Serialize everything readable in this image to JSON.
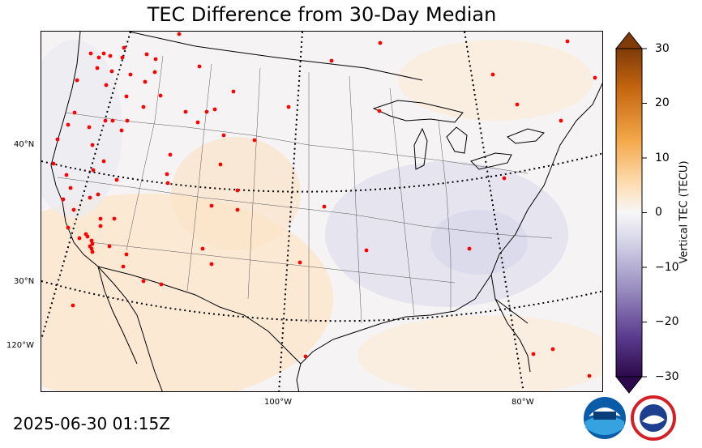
{
  "title": "TEC Difference from 30-Day Median",
  "timestamp": "2025-06-30 01:15Z",
  "lat_labels": [
    "40°N",
    "30°N"
  ],
  "lon_labels": [
    "120°W",
    "100°W",
    "80°W"
  ],
  "colorbar": {
    "label": "Vertical TEC (TECU)",
    "ticks": [
      "30",
      "20",
      "10",
      "0",
      "−10",
      "−20",
      "−30"
    ],
    "range": [
      -30,
      30
    ],
    "extend": "both",
    "colormap": "diverging purple-white-orange",
    "low_color": "#2d0a4b",
    "high_color": "#7f3b08"
  },
  "stations_color": "#ff0000",
  "logos": [
    "noaa-logo",
    "nws-logo"
  ]
}
